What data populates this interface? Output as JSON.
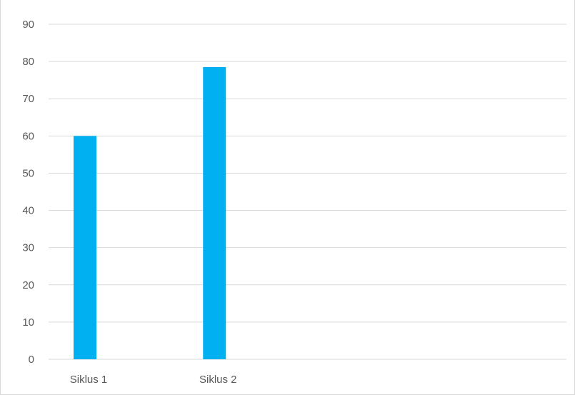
{
  "chart_data": {
    "type": "bar",
    "title": "",
    "xlabel": "",
    "ylabel": "",
    "categories": [
      "Siklus 1",
      "Siklus 2"
    ],
    "series": [
      {
        "values": [
          60,
          78.5
        ],
        "color": "#00b0f0"
      }
    ],
    "ylim": [
      0,
      90
    ],
    "yticks": [
      "0",
      "10",
      "20",
      "30",
      "40",
      "50",
      "60",
      "70",
      "80",
      "90"
    ],
    "grid": true,
    "legend": "none"
  }
}
